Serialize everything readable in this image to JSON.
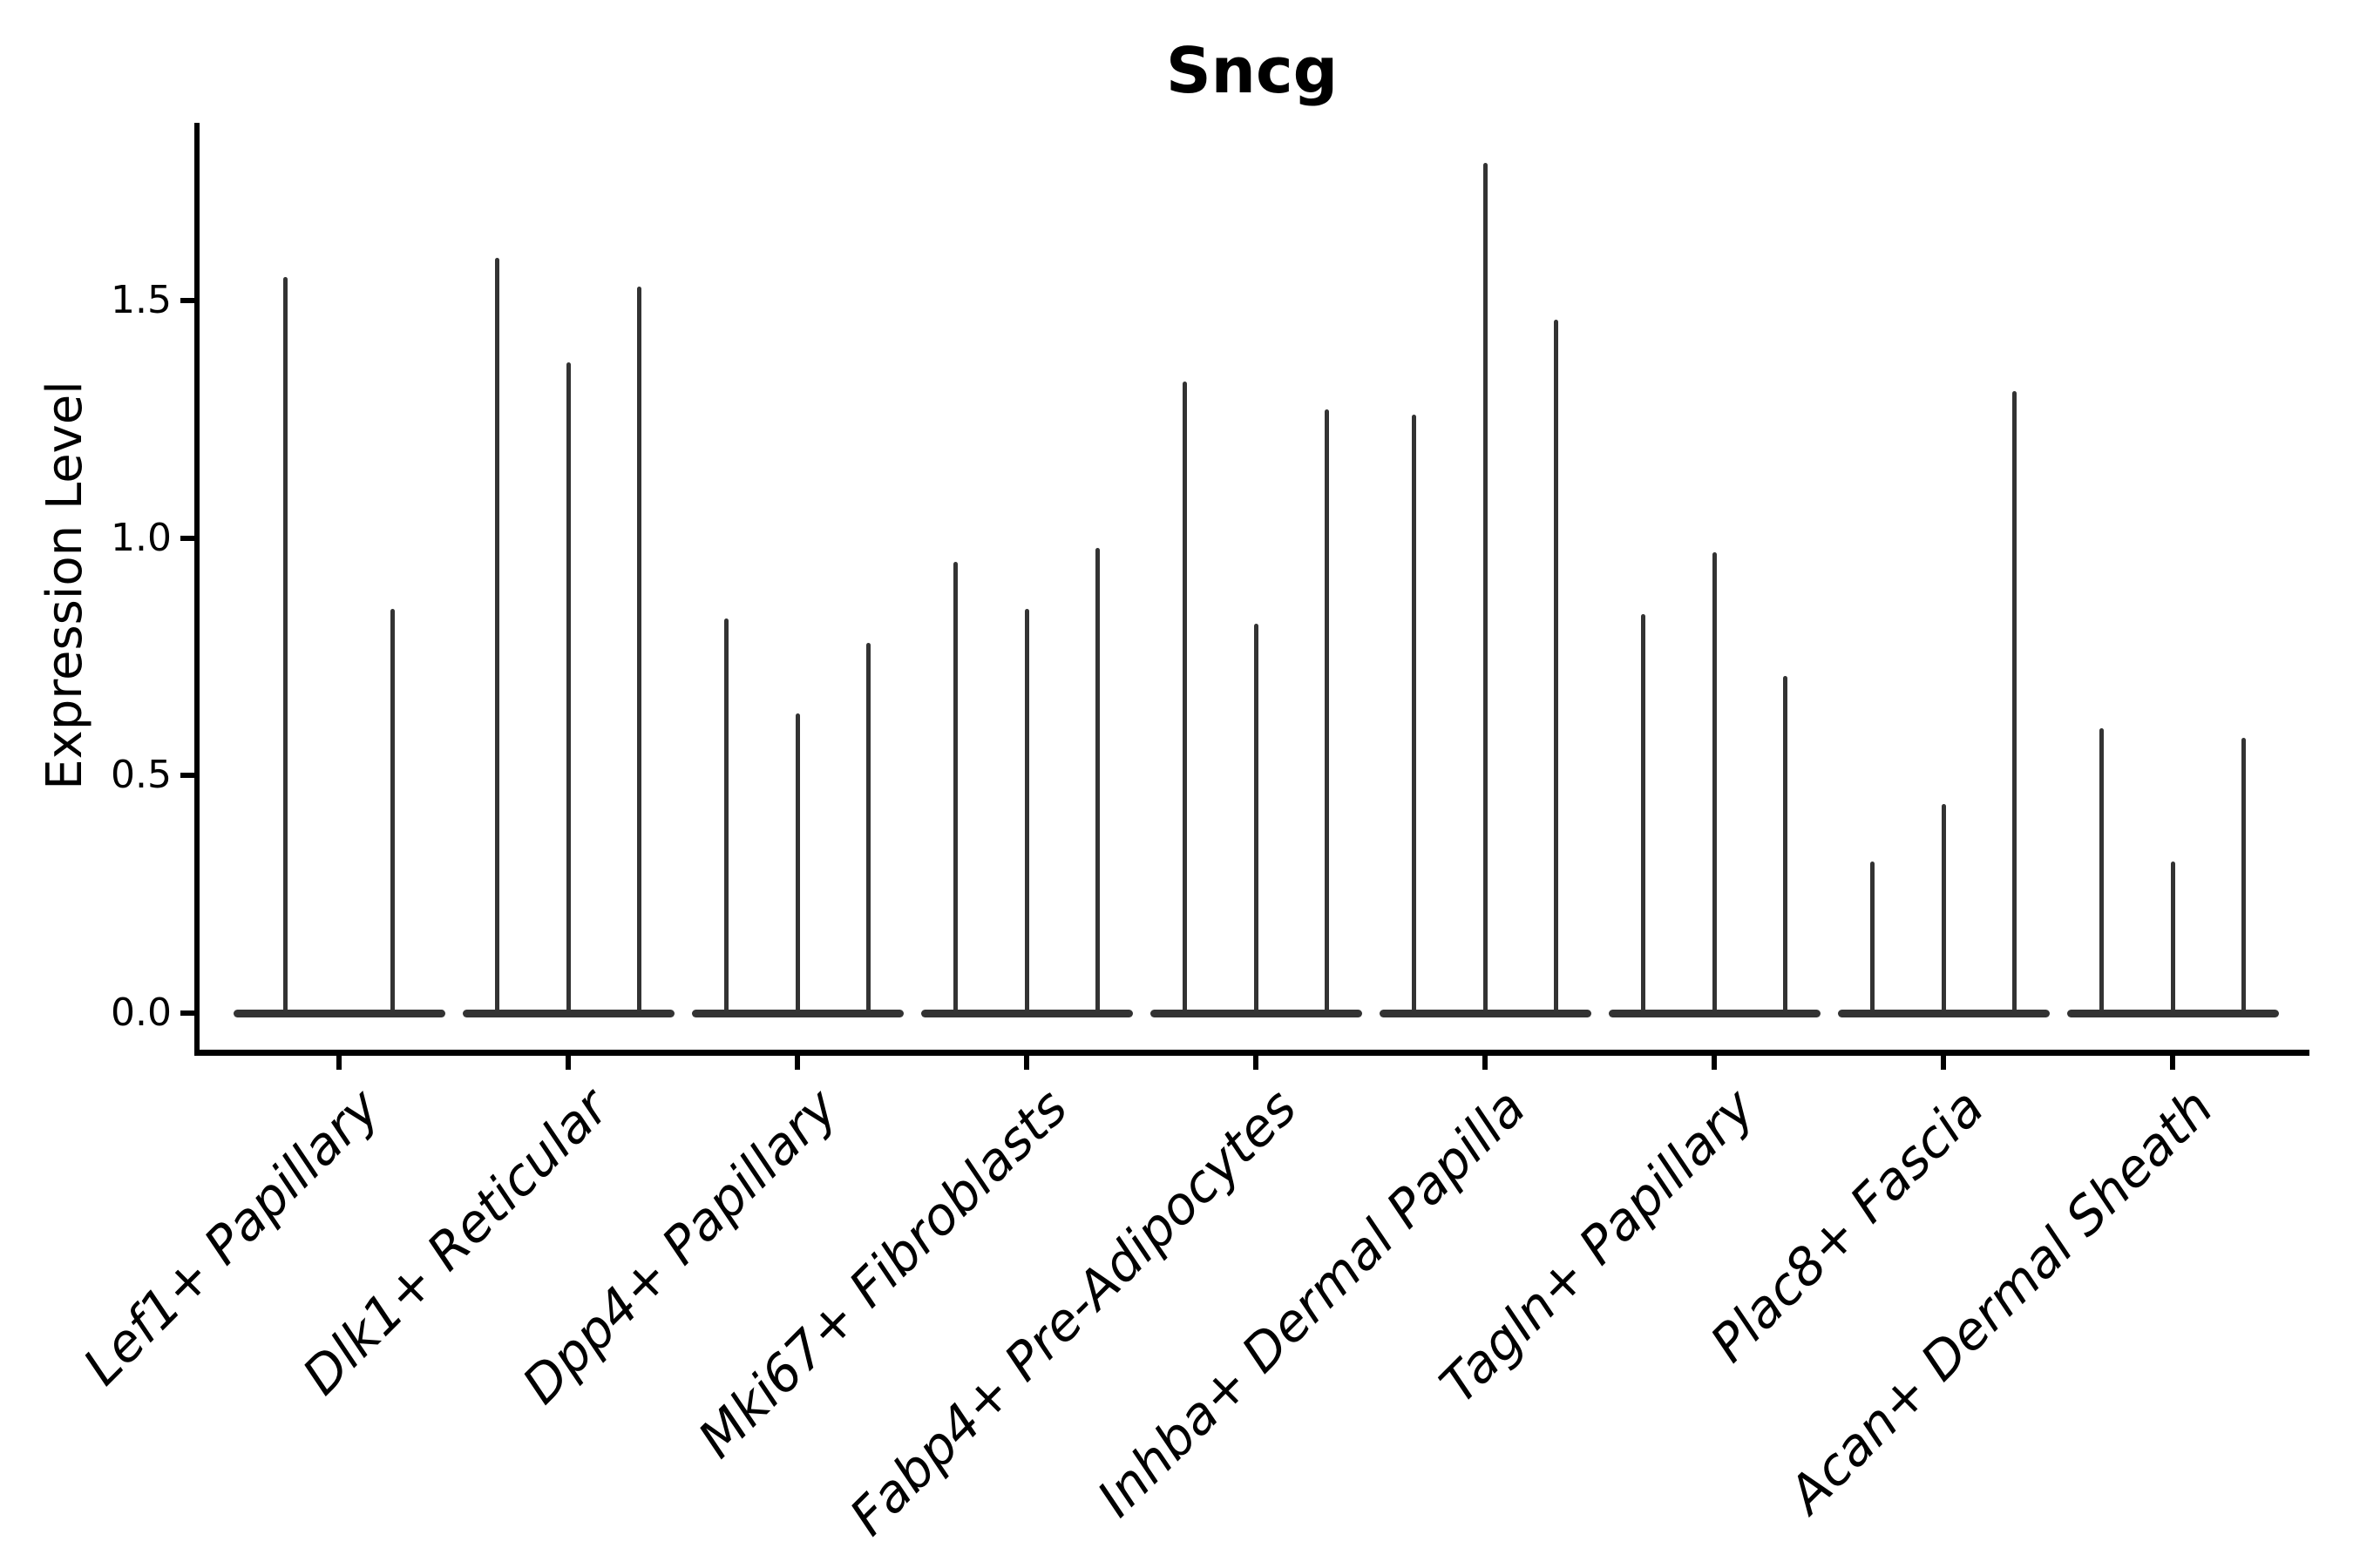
{
  "chart_data": {
    "type": "violin",
    "title": "Sncg",
    "ylabel": "Expression Level",
    "xlabel": "",
    "grid": false,
    "legend": "none",
    "baseline_value": 0.0,
    "y_axis": {
      "tick_labels": [
        "0.0",
        "0.5",
        "1.0",
        "1.5"
      ],
      "tick_values": [
        0.0,
        0.5,
        1.0,
        1.5
      ],
      "range": [
        -0.09,
        1.87
      ]
    },
    "x_axis": {
      "categories": [
        "Lef1+ Papillary",
        "Dlk1+ Reticular",
        "Dpp4+ Papillary",
        "Mki67+ Fibroblasts",
        "Fabp4+ Pre-Adipocytes",
        "Inhba+ Dermal Papilla",
        "Tagln+ Papillary",
        "Plac8+ Fascia",
        "Acan+ Dermal Sheath"
      ],
      "tick_label_rotation_deg": 45,
      "tick_label_style": "italic"
    },
    "description": "Each category contains needle-thin violins (bulk of cells at 0 expression); value listed is the top of each expression spike.",
    "groups": [
      {
        "label": "Lef1+ Papillary",
        "violin_maxima": [
          1.55,
          0.85
        ]
      },
      {
        "label": "Dlk1+ Reticular",
        "violin_maxima": [
          1.59,
          1.37,
          1.53
        ]
      },
      {
        "label": "Dpp4+ Papillary",
        "violin_maxima": [
          0.83,
          0.63,
          0.78
        ]
      },
      {
        "label": "Mki67+ Fibroblasts",
        "violin_maxima": [
          0.95,
          0.85,
          0.98
        ]
      },
      {
        "label": "Fabp4+ Pre-Adipocytes",
        "violin_maxima": [
          1.33,
          0.82,
          1.27
        ]
      },
      {
        "label": "Inhba+ Dermal Papilla",
        "violin_maxima": [
          1.26,
          1.79,
          1.46
        ]
      },
      {
        "label": "Tagln+ Papillary",
        "violin_maxima": [
          0.84,
          0.97,
          0.71
        ]
      },
      {
        "label": "Plac8+ Fascia",
        "violin_maxima": [
          0.32,
          0.44,
          1.31
        ]
      },
      {
        "label": "Acan+ Dermal Sheath",
        "violin_maxima": [
          0.6,
          0.32,
          0.58
        ]
      }
    ]
  },
  "colors": {
    "violin": "#333333",
    "axis": "#000000",
    "text": "#000000",
    "background": "#ffffff"
  }
}
